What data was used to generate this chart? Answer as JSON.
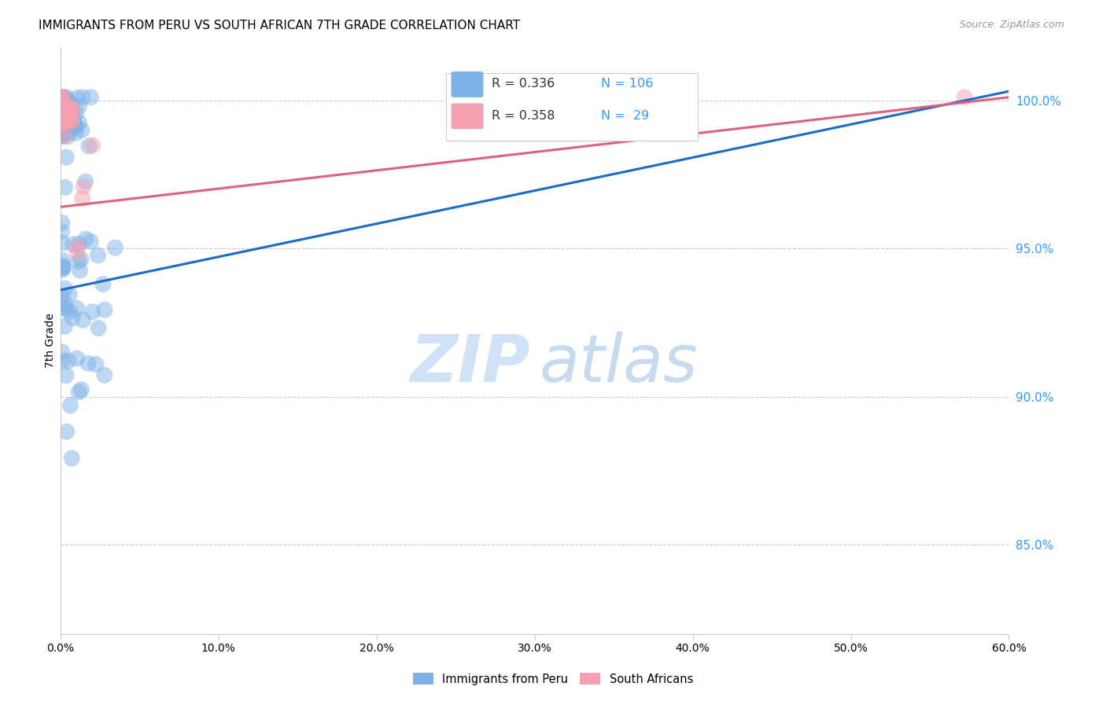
{
  "title": "IMMIGRANTS FROM PERU VS SOUTH AFRICAN 7TH GRADE CORRELATION CHART",
  "source": "Source: ZipAtlas.com",
  "ylabel": "7th Grade",
  "ytick_labels": [
    "100.0%",
    "95.0%",
    "90.0%",
    "85.0%"
  ],
  "ytick_values": [
    1.0,
    0.95,
    0.9,
    0.85
  ],
  "xlim": [
    0.0,
    0.6
  ],
  "ylim": [
    0.82,
    1.018
  ],
  "legend_peru_R": "0.336",
  "legend_peru_N": "106",
  "legend_sa_R": "0.358",
  "legend_sa_N": "29",
  "peru_color": "#7EB3E8",
  "sa_color": "#F4A0B0",
  "peru_line_color": "#1A6CC4",
  "sa_line_color": "#E06080",
  "peru_line_x": [
    0.0,
    0.6
  ],
  "peru_line_y": [
    0.936,
    1.003
  ],
  "sa_line_x": [
    0.0,
    0.6
  ],
  "sa_line_y": [
    0.964,
    1.001
  ],
  "xtick_vals": [
    0.0,
    0.1,
    0.2,
    0.3,
    0.4,
    0.5,
    0.6
  ],
  "xtick_labels": [
    "0.0%",
    "10.0%",
    "20.0%",
    "30.0%",
    "40.0%",
    "50.0%",
    "60.0%"
  ],
  "peru_seed": 42,
  "sa_seed": 17,
  "n_peru": 106,
  "n_sa": 29,
  "watermark_zip_color": "#C8DFF5",
  "watermark_atlas_color": "#A8C8E8"
}
